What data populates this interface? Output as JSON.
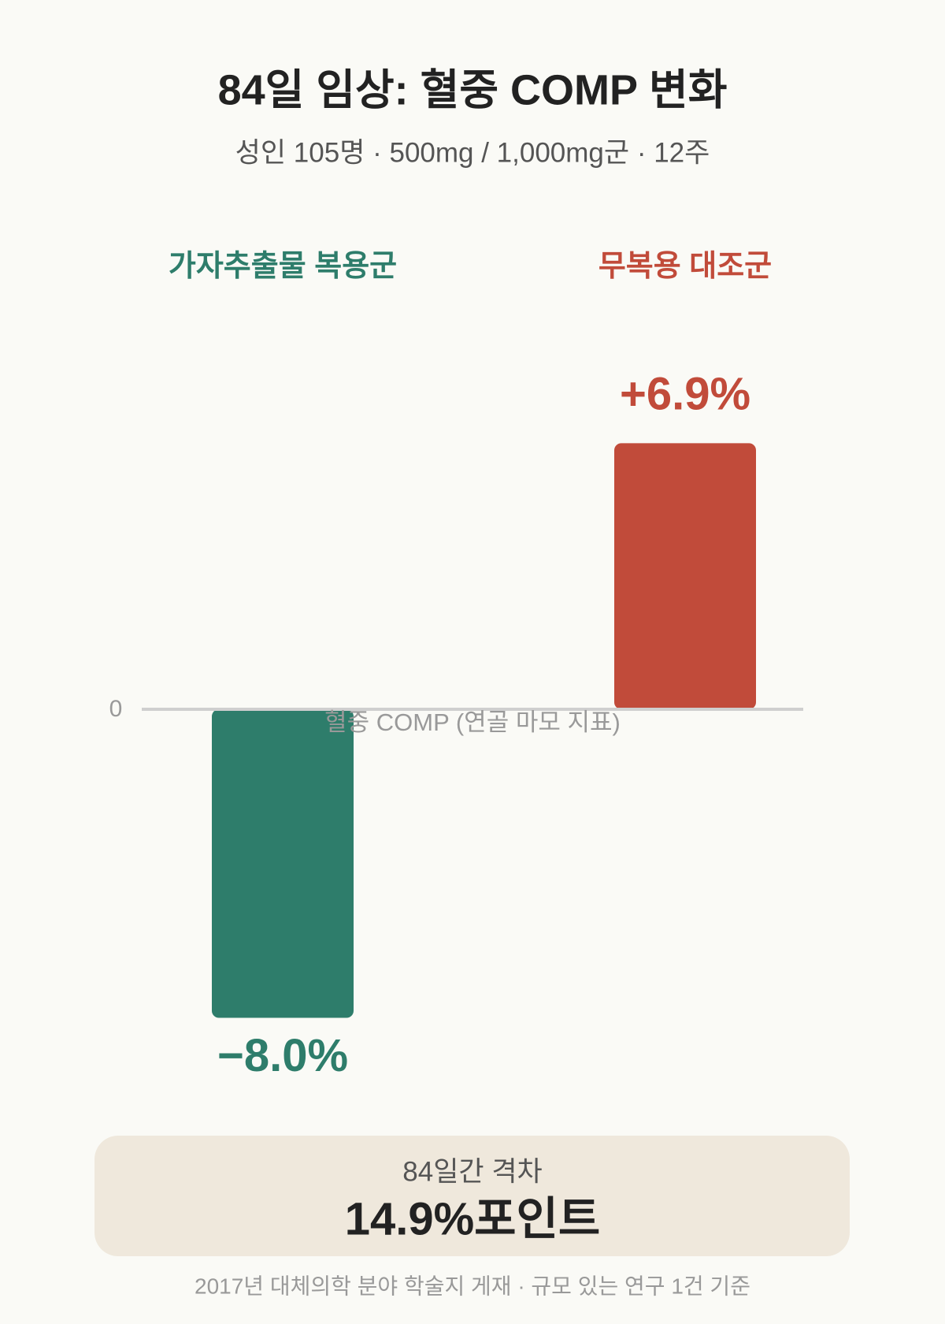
{
  "chart_data": {
    "type": "bar",
    "title": "84일 임상: 혈중 COMP 변화",
    "subtitle": "성인 105명 · 500mg / 1,000mg군 · 12주",
    "categories": [
      "가자추출물 복용군",
      "무복용 대조군"
    ],
    "values": [
      -8.0,
      6.9
    ],
    "value_labels": [
      "−8.0%",
      "+6.9%"
    ],
    "colors": [
      "#2e7d6b",
      "#c14b3a"
    ],
    "x_label": "혈중 COMP (연골 마모 지표)",
    "ylim": [
      -8.5,
      7.5
    ],
    "yticks": [
      0
    ]
  },
  "summary": {
    "label": "84일간 격차",
    "value": "14.9%포인트"
  },
  "footnote": "2017년 대체의학 분야 학술지 게재 · 규모 있는 연구 1건 기준"
}
